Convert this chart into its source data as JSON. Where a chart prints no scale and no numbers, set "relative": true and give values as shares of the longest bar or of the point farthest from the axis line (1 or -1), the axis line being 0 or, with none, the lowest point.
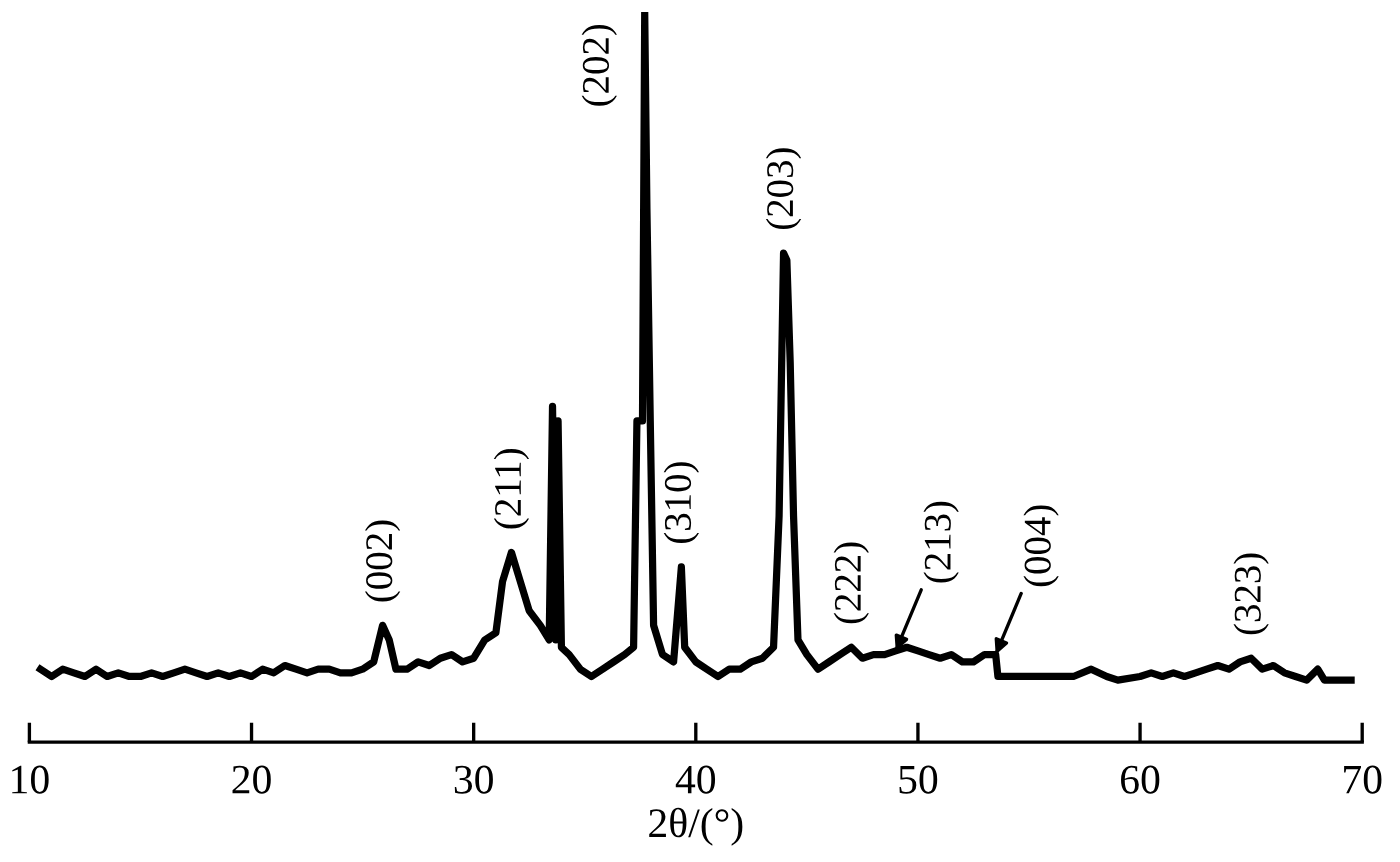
{
  "chart_data": {
    "type": "line",
    "relative": true,
    "xlabel": "2θ/(°)",
    "xlim": [
      10,
      70
    ],
    "xticks": [
      10,
      20,
      30,
      40,
      50,
      60,
      70
    ],
    "grid": false,
    "marker": "none",
    "line_style": "solid",
    "series": [
      {
        "color": "#000000",
        "x": [
          10.5,
          11,
          11.5,
          12,
          12.5,
          13,
          13.5,
          14,
          14.5,
          15,
          15.5,
          16,
          16.5,
          17,
          17.5,
          18,
          18.5,
          19,
          19.5,
          20,
          20.5,
          21,
          21.5,
          22,
          22.5,
          23,
          23.5,
          24,
          24.5,
          25,
          25.5,
          25.9,
          26.2,
          26.5,
          27,
          27.5,
          28,
          28.5,
          29,
          29.5,
          30,
          30.5,
          31,
          31.3,
          31.7,
          32,
          32.5,
          33,
          33.4,
          33.55,
          33.7,
          33.8,
          33.95,
          34.3,
          34.8,
          35.3,
          35.8,
          36.3,
          36.8,
          37.2,
          37.35,
          37.6,
          37.7,
          37.8,
          37.95,
          38.1,
          38.5,
          39,
          39.35,
          39.5,
          40,
          40.5,
          41,
          41.5,
          42,
          42.5,
          43,
          43.5,
          43.75,
          43.95,
          44.1,
          44.25,
          44.4,
          44.6,
          45,
          45.5,
          46,
          46.5,
          47,
          47.5,
          48,
          48.5,
          49,
          49.5,
          50,
          50.5,
          51,
          51.5,
          52,
          52.5,
          53,
          53.5,
          53.6,
          54,
          55,
          56,
          57,
          57.8,
          58.5,
          59,
          60,
          60.5,
          61,
          61.5,
          62,
          62.5,
          63,
          63.5,
          64,
          64.5,
          65,
          65.5,
          66,
          66.5,
          67,
          67.5,
          68,
          68.3,
          69,
          69.5
        ],
        "values": [
          0.1,
          0.09,
          0.1,
          0.095,
          0.09,
          0.1,
          0.09,
          0.095,
          0.09,
          0.09,
          0.095,
          0.09,
          0.095,
          0.1,
          0.095,
          0.09,
          0.095,
          0.09,
          0.095,
          0.09,
          0.1,
          0.095,
          0.105,
          0.1,
          0.095,
          0.1,
          0.1,
          0.095,
          0.095,
          0.1,
          0.11,
          0.16,
          0.14,
          0.1,
          0.1,
          0.11,
          0.105,
          0.115,
          0.12,
          0.11,
          0.115,
          0.14,
          0.15,
          0.22,
          0.26,
          0.23,
          0.18,
          0.16,
          0.14,
          0.46,
          0.14,
          0.44,
          0.13,
          0.12,
          0.1,
          0.09,
          0.1,
          0.11,
          0.12,
          0.13,
          0.44,
          0.44,
          1.0,
          0.73,
          0.44,
          0.16,
          0.12,
          0.11,
          0.24,
          0.13,
          0.11,
          0.1,
          0.09,
          0.1,
          0.1,
          0.11,
          0.115,
          0.13,
          0.31,
          0.67,
          0.66,
          0.52,
          0.31,
          0.14,
          0.12,
          0.1,
          0.11,
          0.12,
          0.13,
          0.115,
          0.12,
          0.12,
          0.125,
          0.13,
          0.125,
          0.12,
          0.115,
          0.12,
          0.11,
          0.11,
          0.12,
          0.12,
          0.09,
          0.09,
          0.09,
          0.09,
          0.09,
          0.1,
          0.09,
          0.085,
          0.09,
          0.095,
          0.09,
          0.095,
          0.09,
          0.095,
          0.1,
          0.105,
          0.1,
          0.11,
          0.115,
          0.1,
          0.105,
          0.095,
          0.09,
          0.085,
          0.1,
          0.085,
          0.085,
          0.085
        ]
      }
    ],
    "annotations": [
      {
        "text": "(002)",
        "x": 25.9,
        "y": 0.16
      },
      {
        "text": "(211)",
        "x": 31.7,
        "y": 0.26
      },
      {
        "text": "(202)",
        "x": 37.7,
        "y": 1.0
      },
      {
        "text": "(310)",
        "x": 39.35,
        "y": 0.24
      },
      {
        "text": "(203)",
        "x": 43.95,
        "y": 0.67
      },
      {
        "text": "(222)",
        "x": 47,
        "y": 0.13
      },
      {
        "text": "(213)",
        "x": 49,
        "y": 0.125
      },
      {
        "text": "(004)",
        "x": 53.5,
        "y": 0.12
      },
      {
        "text": "(323)",
        "x": 65,
        "y": 0.115
      }
    ]
  }
}
